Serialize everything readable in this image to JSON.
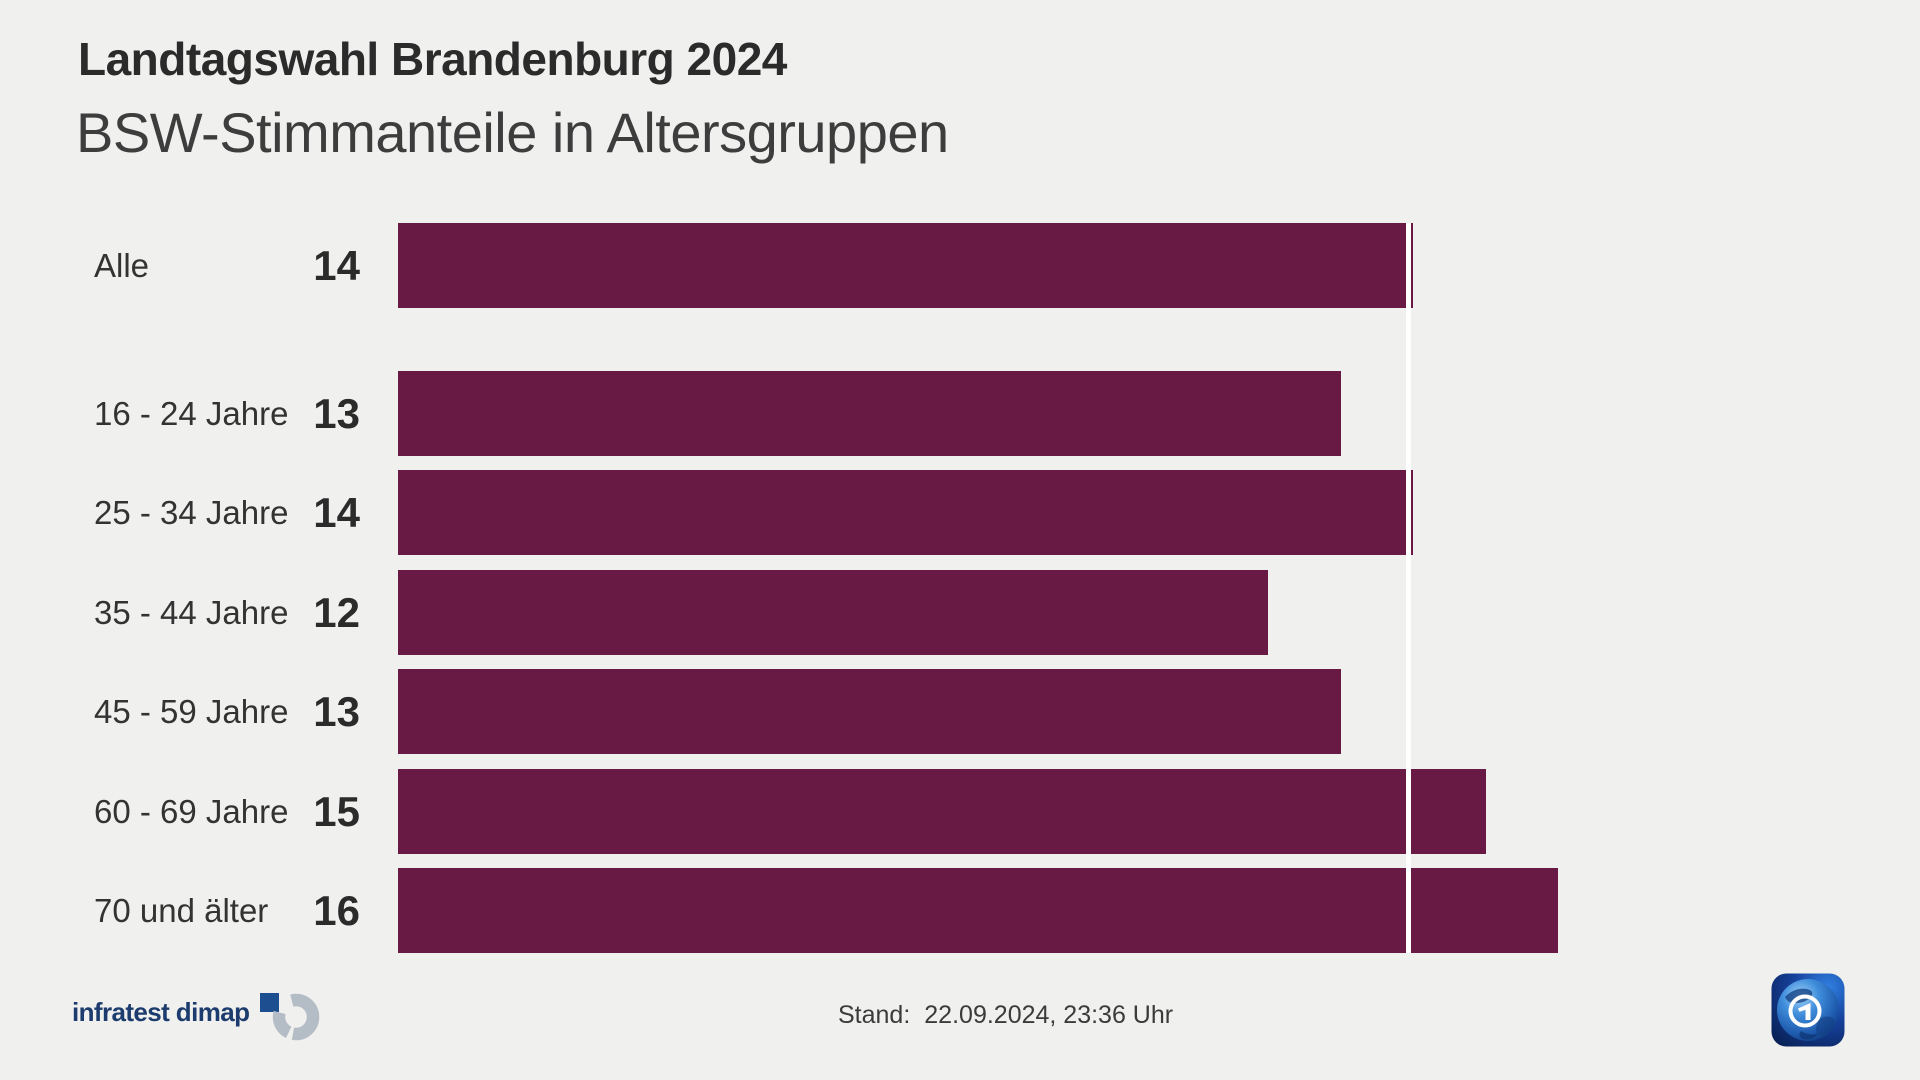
{
  "chart_data": {
    "type": "bar",
    "orientation": "horizontal",
    "title": "Landtagswahl Brandenburg 2024",
    "subtitle": "BSW-Stimmanteile in Altersgruppen",
    "categories": [
      "Alle",
      "16 - 24 Jahre",
      "25 - 34 Jahre",
      "35 - 44 Jahre",
      "45 - 59 Jahre",
      "60 - 69 Jahre",
      "70 und älter"
    ],
    "values": [
      14,
      13,
      14,
      12,
      13,
      15,
      16
    ],
    "reference_value": 14,
    "xlim": [
      0,
      16
    ],
    "grid": false,
    "legend_position": "none"
  },
  "footer": {
    "source": "infratest dimap",
    "stand_label": "Stand:",
    "stand_value": "22.09.2024, 23:36 Uhr"
  },
  "icons": {
    "source_mark": "infratest-dimap-mark-icon",
    "broadcaster": "ard-tagesschau-globe-icon"
  },
  "colors": {
    "background": "#f0f0ef",
    "bar": "#681a44",
    "reference_line": "#ffffff",
    "title": "#2b2b2b",
    "subtitle": "#3d3d3d",
    "label": "#333333",
    "value": "#2b2b2b",
    "stand_text": "#3b3b3b",
    "infratest_blue": "#1d3c6e",
    "infratest_gray": "#b4bcc6",
    "ard_blue": "#123a8c"
  }
}
